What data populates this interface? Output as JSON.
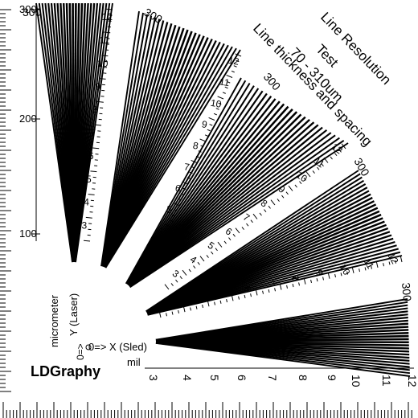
{
  "title": {
    "line1": "Line Resolution",
    "line2": "Test",
    "line3": "70 - 310um",
    "line4": "Line thickness and spacing"
  },
  "axis_labels": {
    "micrometer": "micrometer",
    "y_axis": "Y (Laser)",
    "x_axis": "0=> X (Sled)",
    "y_arrow": "0=>",
    "mil": "mil"
  },
  "brand": "LDGraphy",
  "micrometer_ticks": [
    "100",
    "200",
    "300"
  ],
  "mil_ticks": [
    "3",
    "4",
    "5",
    "6",
    "7",
    "8",
    "9",
    "10",
    "11",
    "12"
  ],
  "fan_mil_labels": [
    "3",
    "4",
    "5",
    "6",
    "7",
    "8",
    "9",
    "10",
    "11",
    "12"
  ],
  "fan_um_label": "300",
  "colors": {
    "ink": "#000000",
    "paper": "#ffffff"
  }
}
